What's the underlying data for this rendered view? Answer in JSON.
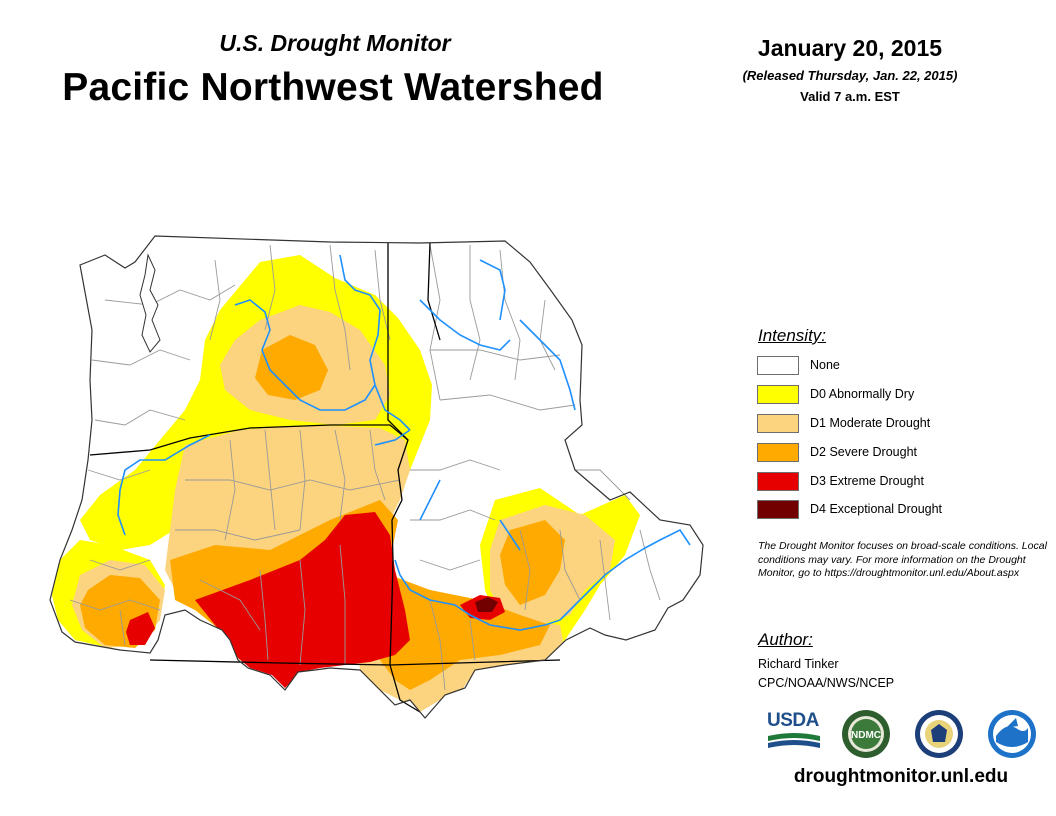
{
  "header": {
    "supertitle": "U.S. Drought Monitor",
    "title": "Pacific Northwest Watershed",
    "date": "January 20, 2015",
    "released": "(Released Thursday, Jan. 22, 2015)",
    "valid": "Valid 7 a.m. EST"
  },
  "legend": {
    "title": "Intensity:",
    "items": [
      {
        "label": "None",
        "color": "#ffffff"
      },
      {
        "label": "D0 Abnormally Dry",
        "color": "#ffff00"
      },
      {
        "label": "D1 Moderate Drought",
        "color": "#fcd37f"
      },
      {
        "label": "D2 Severe Drought",
        "color": "#ffaa00"
      },
      {
        "label": "D3 Extreme Drought",
        "color": "#e60000"
      },
      {
        "label": "D4 Exceptional Drought",
        "color": "#730000"
      }
    ]
  },
  "note": "The Drought Monitor focuses on broad-scale conditions. Local conditions may vary. For more information on the Drought Monitor, go to https://droughtmonitor.unl.edu/About.aspx",
  "author": {
    "label": "Author:",
    "name": "Richard Tinker",
    "org": "CPC/NOAA/NWS/NCEP"
  },
  "logos": {
    "usda": "USDA",
    "ndmc": "NDMC"
  },
  "website": "droughtmonitor.unl.edu",
  "colors": {
    "river": "#1e90ff",
    "boundary": "#9a9a9a",
    "state_line": "#000000"
  }
}
